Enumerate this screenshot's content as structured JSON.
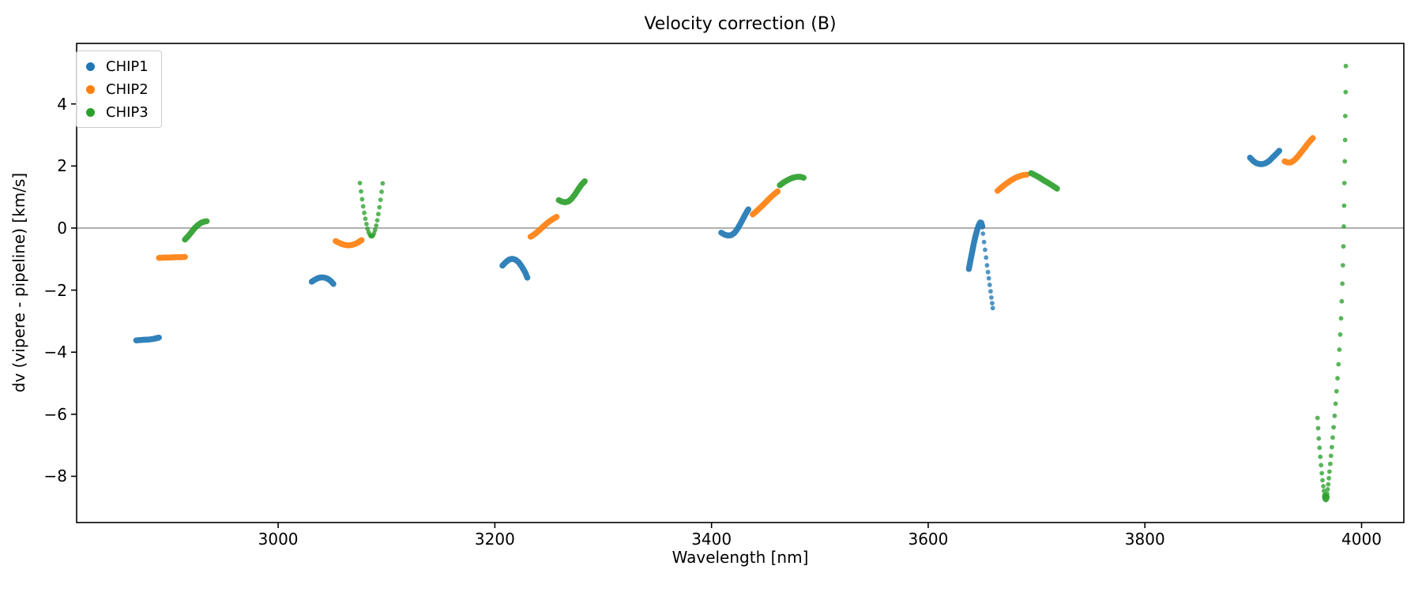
{
  "title": "Velocity correction (B)",
  "xlabel": "Wavelength [nm]",
  "ylabel": "dv (vipere - pipeline) [km/s]",
  "legend": {
    "position": "upper left",
    "items": [
      {
        "label": "CHIP1",
        "color": "#1f77b4"
      },
      {
        "label": "CHIP2",
        "color": "#ff7f0e"
      },
      {
        "label": "CHIP3",
        "color": "#2ca02c"
      }
    ]
  },
  "colors": {
    "chip1": "#1f77b4",
    "chip2": "#ff7f0e",
    "chip3": "#2ca02c",
    "spine": "#000000",
    "zero_line": "#8c8c8c",
    "background": "#ffffff"
  },
  "chart_data": {
    "type": "scatter",
    "title": "Velocity correction (B)",
    "xlabel": "Wavelength [nm]",
    "ylabel": "dv (vipere - pipeline) [km/s]",
    "xlim": [
      2814,
      4039
    ],
    "ylim": [
      -9.49,
      5.95
    ],
    "xticks": [
      3000,
      3200,
      3400,
      3600,
      3800,
      4000
    ],
    "xtick_labels": [
      "3000",
      "3200",
      "3400",
      "3600",
      "3800",
      "4000"
    ],
    "yticks": [
      4,
      2,
      0,
      -2,
      -4,
      -6,
      -8
    ],
    "ytick_labels": [
      "4",
      "2",
      "0",
      "−2",
      "−4",
      "−6",
      "−8"
    ],
    "grid": false,
    "zero_line": 0,
    "legend_position": "upper left",
    "series": [
      {
        "name": "CHIP1",
        "color": "#1f77b4",
        "segments": [
          {
            "style": "dense",
            "points": [
              [
                2869,
                -3.62
              ],
              [
                2873,
                -3.61
              ],
              [
                2877,
                -3.6
              ],
              [
                2881,
                -3.59
              ],
              [
                2885,
                -3.57
              ],
              [
                2890,
                -3.53
              ]
            ]
          },
          {
            "style": "dense",
            "points": [
              [
                3031,
                -1.73
              ],
              [
                3034,
                -1.66
              ],
              [
                3037,
                -1.61
              ],
              [
                3040,
                -1.59
              ],
              [
                3043,
                -1.6
              ],
              [
                3046,
                -1.64
              ],
              [
                3049,
                -1.72
              ],
              [
                3051,
                -1.8
              ]
            ]
          },
          {
            "style": "dense",
            "points": [
              [
                3207,
                -1.21
              ],
              [
                3210,
                -1.1
              ],
              [
                3213,
                -1.02
              ],
              [
                3216,
                -0.99
              ],
              [
                3219,
                -1.02
              ],
              [
                3222,
                -1.1
              ],
              [
                3225,
                -1.25
              ],
              [
                3228,
                -1.43
              ],
              [
                3230,
                -1.6
              ]
            ]
          },
          {
            "style": "dense",
            "points": [
              [
                3409,
                -0.15
              ],
              [
                3412,
                -0.21
              ],
              [
                3415,
                -0.24
              ],
              [
                3418,
                -0.23
              ],
              [
                3421,
                -0.16
              ],
              [
                3424,
                -0.02
              ],
              [
                3427,
                0.16
              ],
              [
                3430,
                0.36
              ],
              [
                3433,
                0.55
              ],
              [
                3434,
                0.6
              ]
            ]
          },
          {
            "style": "dense",
            "points": [
              [
                3637.5,
                -1.32
              ],
              [
                3639,
                -1.05
              ],
              [
                3640.5,
                -0.78
              ],
              [
                3642,
                -0.52
              ],
              [
                3643.5,
                -0.28
              ],
              [
                3645,
                -0.08
              ],
              [
                3646.5,
                0.08
              ],
              [
                3648,
                0.18
              ],
              [
                3649,
                0.17
              ],
              [
                3650,
                0.05
              ]
            ]
          },
          {
            "style": "dots",
            "points": [
              [
                3650.5,
                -0.18
              ],
              [
                3651.5,
                -0.45
              ],
              [
                3652.5,
                -0.7
              ],
              [
                3653.4,
                -0.95
              ],
              [
                3654.3,
                -1.2
              ],
              [
                3655.2,
                -1.42
              ],
              [
                3656,
                -1.62
              ],
              [
                3656.8,
                -1.83
              ],
              [
                3657.6,
                -2.04
              ],
              [
                3658.3,
                -2.24
              ],
              [
                3659,
                -2.42
              ],
              [
                3659.6,
                -2.58
              ]
            ]
          },
          {
            "style": "dense",
            "points": [
              [
                3897,
                2.27
              ],
              [
                3900,
                2.16
              ],
              [
                3903,
                2.09
              ],
              [
                3906,
                2.06
              ],
              [
                3909,
                2.06
              ],
              [
                3912,
                2.1
              ],
              [
                3915,
                2.17
              ],
              [
                3918,
                2.28
              ],
              [
                3921,
                2.38
              ],
              [
                3924,
                2.49
              ]
            ]
          }
        ]
      },
      {
        "name": "CHIP2",
        "color": "#ff7f0e",
        "segments": [
          {
            "style": "dense",
            "points": [
              [
                2890,
                -0.96
              ],
              [
                2895,
                -0.95
              ],
              [
                2900,
                -0.95
              ],
              [
                2905,
                -0.94
              ],
              [
                2910,
                -0.94
              ],
              [
                2914,
                -0.93
              ]
            ]
          },
          {
            "style": "dense",
            "points": [
              [
                3053,
                -0.42
              ],
              [
                3057,
                -0.49
              ],
              [
                3061,
                -0.54
              ],
              [
                3065,
                -0.56
              ],
              [
                3069,
                -0.54
              ],
              [
                3073,
                -0.48
              ],
              [
                3077,
                -0.39
              ]
            ]
          },
          {
            "style": "dense",
            "points": [
              [
                3233,
                -0.28
              ],
              [
                3237,
                -0.19
              ],
              [
                3241,
                -0.07
              ],
              [
                3245,
                0.06
              ],
              [
                3249,
                0.18
              ],
              [
                3253,
                0.28
              ],
              [
                3257,
                0.36
              ]
            ]
          },
          {
            "style": "dense",
            "points": [
              [
                3438,
                0.44
              ],
              [
                3442,
                0.56
              ],
              [
                3446,
                0.69
              ],
              [
                3450,
                0.83
              ],
              [
                3454,
                0.97
              ],
              [
                3458,
                1.1
              ],
              [
                3461,
                1.18
              ]
            ]
          },
          {
            "style": "dense",
            "points": [
              [
                3664,
                1.2
              ],
              [
                3668,
                1.32
              ],
              [
                3672,
                1.43
              ],
              [
                3676,
                1.53
              ],
              [
                3680,
                1.61
              ],
              [
                3684,
                1.67
              ],
              [
                3688,
                1.71
              ],
              [
                3691,
                1.72
              ]
            ]
          },
          {
            "style": "dense",
            "points": [
              [
                3929,
                2.15
              ],
              [
                3932,
                2.11
              ],
              [
                3935,
                2.12
              ],
              [
                3938,
                2.19
              ],
              [
                3941,
                2.3
              ],
              [
                3944,
                2.43
              ],
              [
                3947,
                2.56
              ],
              [
                3950,
                2.7
              ],
              [
                3953,
                2.83
              ],
              [
                3955,
                2.9
              ]
            ]
          }
        ]
      },
      {
        "name": "CHIP3",
        "color": "#2ca02c",
        "segments": [
          {
            "style": "dense",
            "points": [
              [
                2914,
                -0.37
              ],
              [
                2917,
                -0.26
              ],
              [
                2920,
                -0.13
              ],
              [
                2923,
                0.0
              ],
              [
                2926,
                0.1
              ],
              [
                2929,
                0.17
              ],
              [
                2932,
                0.21
              ],
              [
                2934,
                0.22
              ]
            ]
          },
          {
            "style": "dots",
            "points": [
              [
                3075.5,
                1.45
              ],
              [
                3076.5,
                1.18
              ],
              [
                3077.5,
                0.93
              ],
              [
                3078.5,
                0.7
              ],
              [
                3079.5,
                0.49
              ],
              [
                3080.5,
                0.3
              ],
              [
                3081.5,
                0.13
              ],
              [
                3082.5,
                -0.02
              ],
              [
                3083.5,
                -0.13
              ],
              [
                3084.5,
                -0.21
              ],
              [
                3085.5,
                -0.26
              ],
              [
                3086.5,
                -0.27
              ],
              [
                3087.5,
                -0.24
              ],
              [
                3088.5,
                -0.17
              ],
              [
                3089.5,
                -0.06
              ],
              [
                3090.5,
                0.08
              ],
              [
                3091.5,
                0.25
              ],
              [
                3092.5,
                0.45
              ],
              [
                3093.5,
                0.67
              ],
              [
                3094.5,
                0.91
              ],
              [
                3095.5,
                1.17
              ],
              [
                3096.5,
                1.44
              ]
            ]
          },
          {
            "style": "dense",
            "points": [
              [
                3259,
                0.9
              ],
              [
                3262,
                0.85
              ],
              [
                3265,
                0.83
              ],
              [
                3268,
                0.86
              ],
              [
                3271,
                0.95
              ],
              [
                3274,
                1.09
              ],
              [
                3277,
                1.25
              ],
              [
                3280,
                1.4
              ],
              [
                3283,
                1.51
              ]
            ]
          },
          {
            "style": "dense",
            "points": [
              [
                3463,
                1.38
              ],
              [
                3467,
                1.48
              ],
              [
                3471,
                1.56
              ],
              [
                3475,
                1.62
              ],
              [
                3479,
                1.65
              ],
              [
                3482,
                1.65
              ],
              [
                3485,
                1.62
              ]
            ]
          },
          {
            "style": "dense",
            "points": [
              [
                3695,
                1.77
              ],
              [
                3699,
                1.7
              ],
              [
                3703,
                1.62
              ],
              [
                3707,
                1.53
              ],
              [
                3711,
                1.45
              ],
              [
                3715,
                1.36
              ],
              [
                3719,
                1.27
              ]
            ]
          },
          {
            "style": "dots",
            "points": [
              [
                3959.4,
                -6.12
              ],
              [
                3959.9,
                -6.45
              ],
              [
                3960.5,
                -6.78
              ],
              [
                3961.2,
                -7.08
              ],
              [
                3961.9,
                -7.37
              ],
              [
                3962.6,
                -7.64
              ],
              [
                3963.3,
                -7.9
              ],
              [
                3964.0,
                -8.13
              ],
              [
                3964.7,
                -8.32
              ],
              [
                3965.3,
                -8.47
              ],
              [
                3965.9,
                -8.59
              ],
              [
                3966.4,
                -8.68
              ]
            ]
          },
          {
            "style": "dense",
            "points": [
              [
                3966.2,
                -8.66
              ],
              [
                3966.6,
                -8.72
              ],
              [
                3967.0,
                -8.74
              ],
              [
                3967.4,
                -8.72
              ],
              [
                3967.8,
                -8.66
              ]
            ]
          },
          {
            "style": "dots",
            "points": [
              [
                3968.2,
                -8.56
              ],
              [
                3968.7,
                -8.42
              ],
              [
                3969.2,
                -8.26
              ],
              [
                3969.8,
                -8.06
              ],
              [
                3970.4,
                -7.85
              ],
              [
                3971.1,
                -7.6
              ],
              [
                3971.8,
                -7.34
              ],
              [
                3972.6,
                -7.06
              ],
              [
                3973.4,
                -6.75
              ],
              [
                3974.2,
                -6.42
              ],
              [
                3975.1,
                -6.05
              ],
              [
                3976.0,
                -5.66
              ],
              [
                3976.9,
                -5.26
              ],
              [
                3977.8,
                -4.84
              ],
              [
                3978.7,
                -4.39
              ],
              [
                3979.5,
                -3.92
              ],
              [
                3980.3,
                -3.43
              ],
              [
                3981.0,
                -2.91
              ],
              [
                3981.7,
                -2.36
              ],
              [
                3982.3,
                -1.79
              ],
              [
                3982.8,
                -1.2
              ],
              [
                3983.2,
                -0.59
              ],
              [
                3983.6,
                0.05
              ],
              [
                3983.9,
                0.72
              ],
              [
                3984.2,
                1.45
              ],
              [
                3984.5,
                2.15
              ],
              [
                3984.8,
                2.84
              ],
              [
                3985.0,
                3.61
              ],
              [
                3985.3,
                4.38
              ],
              [
                3985.5,
                5.22
              ]
            ]
          }
        ]
      }
    ]
  }
}
